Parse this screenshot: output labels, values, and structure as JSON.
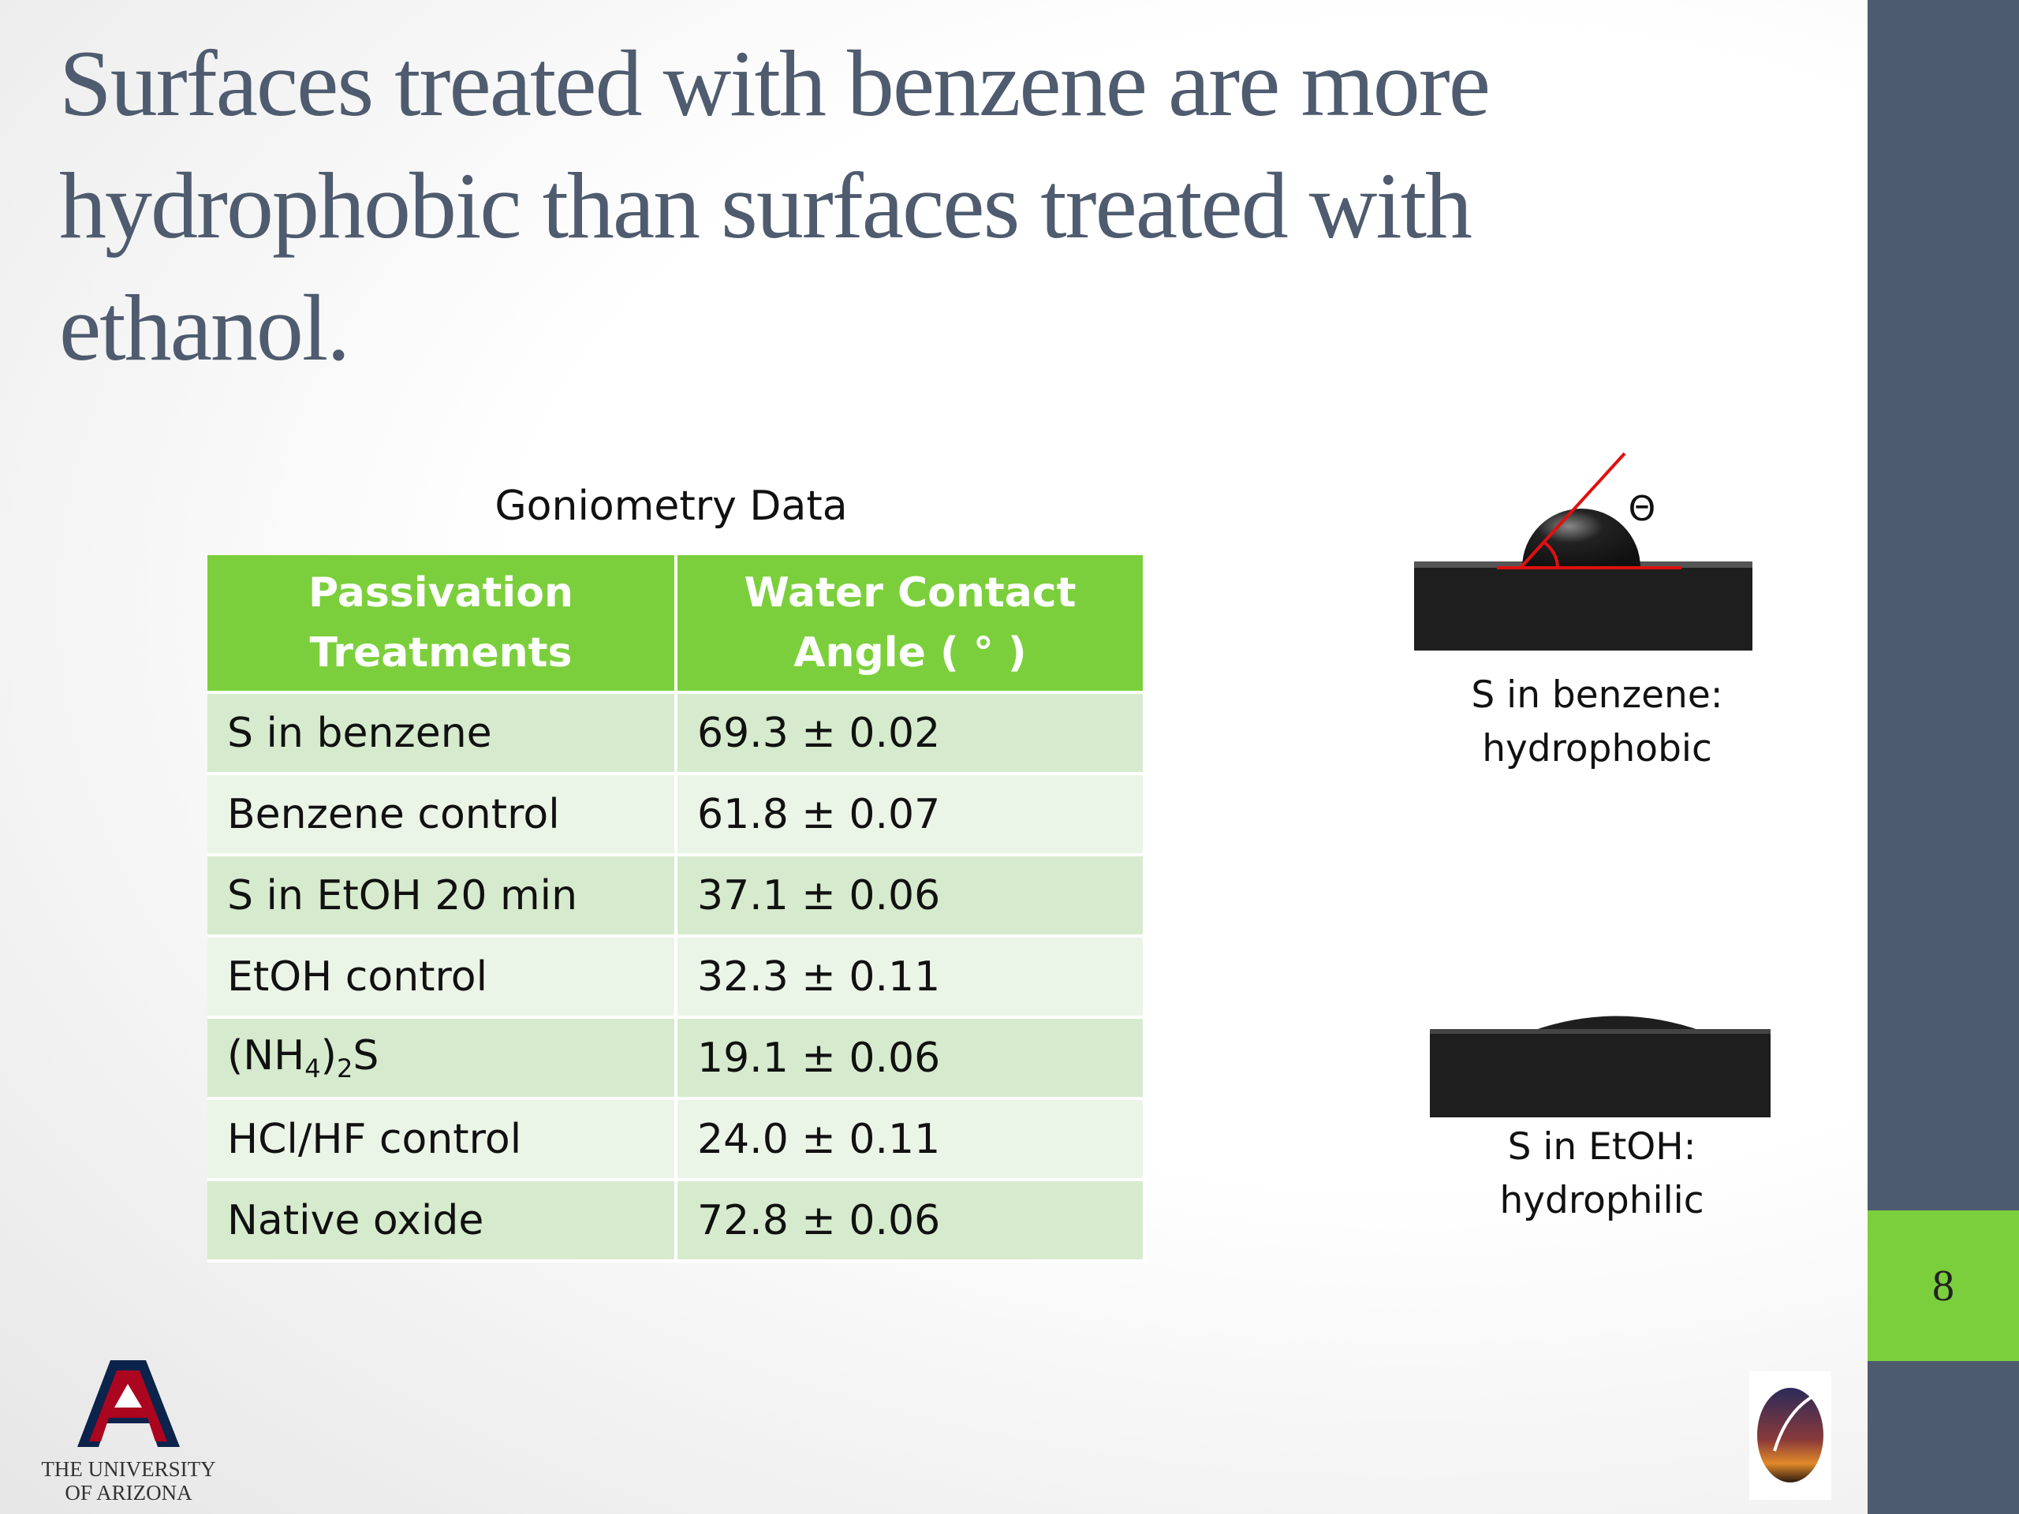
{
  "slide": {
    "title": "Surfaces treated with benzene are more hydrophobic than surfaces treated with ethanol.",
    "table": {
      "caption": "Goniometry Data",
      "headers": [
        [
          "Passivation",
          "Treatments"
        ],
        [
          "Water Contact",
          "Angle ( ° )"
        ]
      ],
      "rows": [
        [
          "S in benzene",
          "69.3 ± 0.02"
        ],
        [
          "Benzene control",
          "61.8 ± 0.07"
        ],
        [
          "S in EtOH 20 min",
          "37.1 ± 0.06"
        ],
        [
          "EtOH control",
          "32.3 ± 0.11"
        ],
        [
          [
            "(NH",
            "4",
            ")",
            "2",
            "S"
          ],
          "19.1 ± 0.06"
        ],
        [
          "HCl/HF control",
          "24.0 ± 0.11"
        ],
        [
          "Native oxide",
          "72.8 ± 0.06"
        ]
      ]
    },
    "figures": [
      {
        "angle_symbol": "Θ",
        "caption": [
          "S in benzene:",
          "hydrophobic"
        ]
      },
      {
        "caption": [
          "S in EtOH:",
          "hydrophilic"
        ]
      }
    ],
    "page_number": "8",
    "logo": [
      "The University",
      "of Arizona"
    ]
  }
}
